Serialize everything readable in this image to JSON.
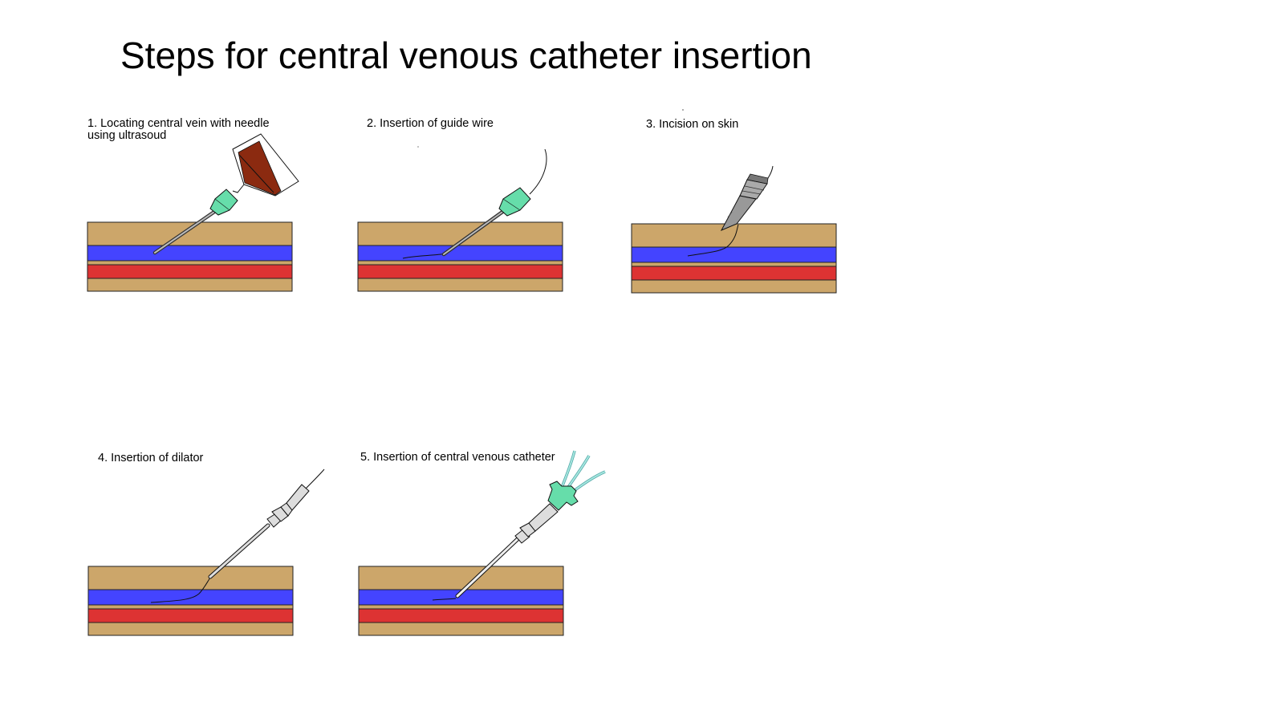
{
  "title": "Steps for central venous catheter insertion",
  "steps": [
    {
      "label": "1. Locating central vein with needle\nusing ultrasoud"
    },
    {
      "label": "2. Insertion of guide wire"
    },
    {
      "label": "3. Incision on skin"
    },
    {
      "label": "4. Insertion of dilator"
    },
    {
      "label": "5. Insertion of central venous catheter"
    }
  ],
  "colors": {
    "skin": "#CCA66A",
    "vein": "#4444FF",
    "artery": "#DD3333",
    "hub": "#66DDAA",
    "probe": "#8B2A10",
    "scalpel": "#999999",
    "dilator": "#DDDDDD",
    "lumen_tube": "#A8E8E0"
  }
}
